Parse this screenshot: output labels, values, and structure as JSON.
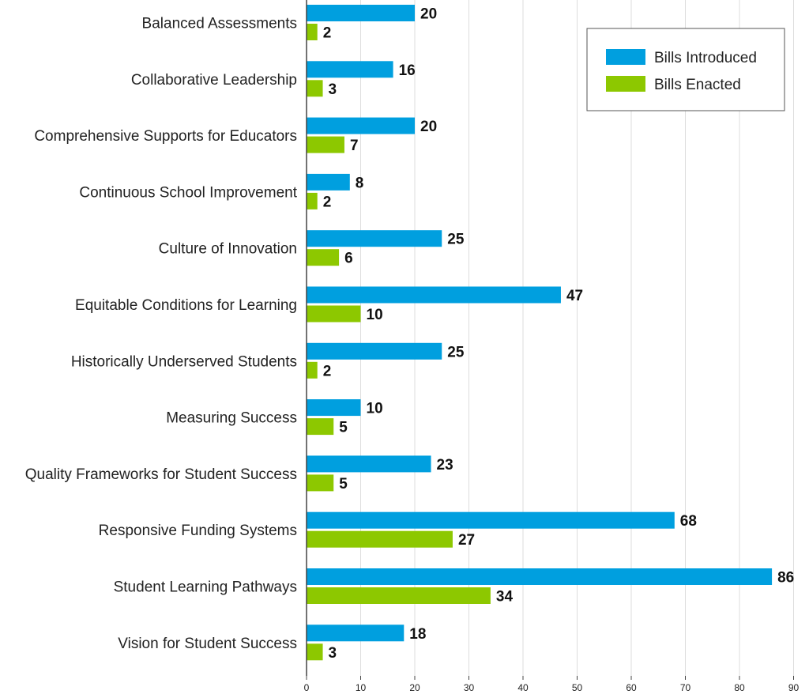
{
  "chart_data": {
    "type": "bar",
    "orientation": "horizontal",
    "categories": [
      "Balanced Assessments",
      "Collaborative Leadership",
      "Comprehensive Supports for Educators",
      "Continuous School Improvement",
      "Culture of Innovation",
      "Equitable Conditions for Learning",
      "Historically Underserved Students",
      "Measuring Success",
      "Quality Frameworks for Student Success",
      "Responsive Funding Systems",
      "Student Learning Pathways",
      "Vision for Student Success"
    ],
    "series": [
      {
        "name": "Bills Introduced",
        "color": "#009fdf",
        "values": [
          20,
          16,
          20,
          8,
          25,
          47,
          25,
          10,
          23,
          68,
          86,
          18
        ]
      },
      {
        "name": "Bills Enacted",
        "color": "#8dc800",
        "values": [
          2,
          3,
          7,
          2,
          6,
          10,
          2,
          5,
          5,
          27,
          34,
          3
        ]
      }
    ],
    "title": "",
    "xlabel": "",
    "ylabel": "",
    "xlim": [
      0,
      90
    ],
    "xticks": [
      "0",
      "10",
      "20",
      "30",
      "40",
      "50",
      "60",
      "70",
      "80",
      "90"
    ],
    "grid": true,
    "legend_position": "top-right",
    "show_data_labels": true
  }
}
